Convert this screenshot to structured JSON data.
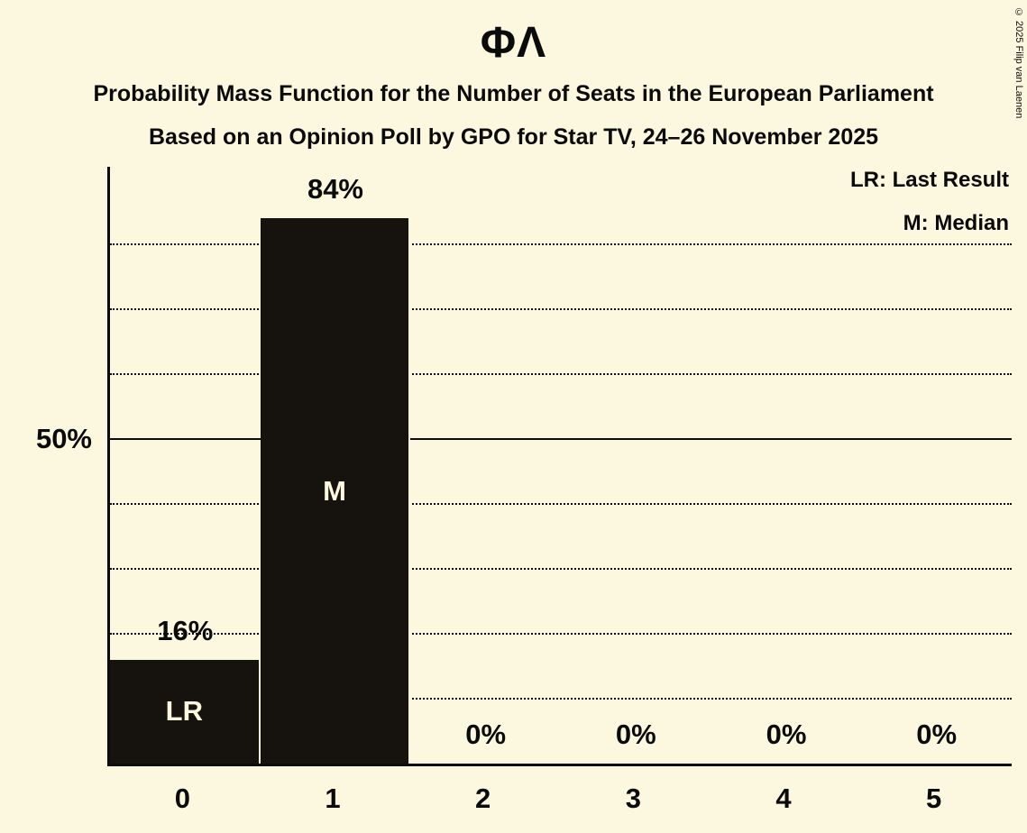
{
  "title": "ΦΛ",
  "subtitles": [
    "Probability Mass Function for the Number of Seats in the European Parliament",
    "Based on an Opinion Poll by GPO for Star TV, 24–26 November 2025"
  ],
  "copyright": "© 2025 Filip van Laenen",
  "colors": {
    "background": "#FCF7DF",
    "bar": "#16130E",
    "text": "#0B0B0B"
  },
  "chart_data": {
    "type": "bar",
    "title": "ΦΛ",
    "categories": [
      "0",
      "1",
      "2",
      "3",
      "4",
      "5"
    ],
    "values": [
      16,
      84,
      0,
      0,
      0,
      0
    ],
    "value_labels": [
      "16%",
      "84%",
      "0%",
      "0%",
      "0%",
      "0%"
    ],
    "bar_annotations": [
      "LR",
      "M",
      "",
      "",
      "",
      ""
    ],
    "legend": [
      "LR: Last Result",
      "M: Median"
    ],
    "xlabel": "",
    "ylabel": "",
    "ylim": [
      0,
      92
    ],
    "ytick": {
      "value": 50,
      "label": "50%"
    },
    "gridlines_dotted": [
      10,
      20,
      30,
      40,
      60,
      70,
      80
    ],
    "gridline_solid": 50,
    "grid": "dotted horizontal lines every 10%, solid line at 50%",
    "legend_position": "top-right"
  }
}
